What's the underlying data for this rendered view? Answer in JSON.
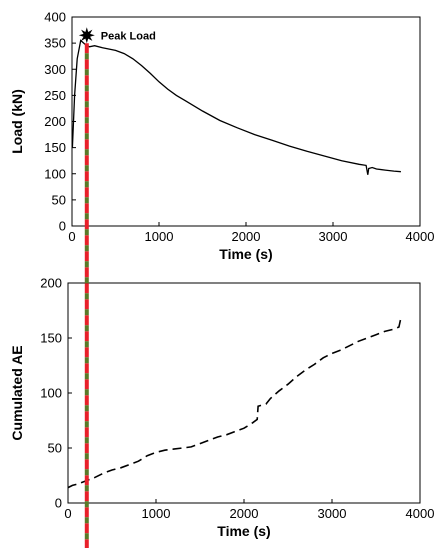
{
  "chart_data": [
    {
      "type": "line",
      "xlabel": "Time (s)",
      "ylabel": "Load (kN)",
      "xlim": [
        0,
        4000
      ],
      "ylim": [
        0,
        400
      ],
      "xticks": [
        0,
        1000,
        2000,
        3000,
        4000
      ],
      "yticks": [
        0,
        50,
        100,
        150,
        200,
        250,
        300,
        350,
        400
      ],
      "annotation": {
        "text": "Peak Load",
        "x": 170,
        "y": 365
      },
      "series": [
        {
          "color": "#000000",
          "x": [
            5,
            30,
            60,
            100,
            150,
            200,
            260,
            350,
            500,
            600,
            700,
            800,
            900,
            1000,
            1100,
            1200,
            1300,
            1500,
            1700,
            1900,
            2100,
            2300,
            2500,
            2700,
            2900,
            3100,
            3300,
            3380,
            3400,
            3410,
            3450,
            3500,
            3600,
            3700,
            3780
          ],
          "y": [
            150,
            250,
            320,
            355,
            348,
            343,
            345,
            341,
            336,
            330,
            320,
            307,
            292,
            276,
            262,
            250,
            240,
            220,
            202,
            188,
            175,
            164,
            153,
            143,
            134,
            125,
            118,
            116,
            98,
            110,
            112,
            109,
            107,
            105,
            104
          ]
        }
      ]
    },
    {
      "type": "line",
      "xlabel": "Time (s)",
      "ylabel": "Cumulated AE",
      "xlim": [
        0,
        4000
      ],
      "ylim": [
        0,
        200
      ],
      "xticks": [
        0,
        1000,
        2000,
        3000,
        4000
      ],
      "yticks": [
        0,
        50,
        100,
        150,
        200
      ],
      "series": [
        {
          "color": "#000000",
          "x": [
            0,
            50,
            100,
            200,
            300,
            400,
            500,
            600,
            700,
            800,
            900,
            1000,
            1100,
            1200,
            1300,
            1400,
            1500,
            1600,
            1700,
            1800,
            1900,
            2000,
            2100,
            2150,
            2160,
            2250,
            2300,
            2400,
            2500,
            2600,
            2700,
            2800,
            2900,
            3000,
            3100,
            3200,
            3300,
            3400,
            3500,
            3600,
            3700,
            3760,
            3780
          ],
          "y": [
            14,
            16,
            17,
            20,
            23,
            27,
            30,
            32,
            35,
            38,
            43,
            46,
            48,
            49,
            50,
            51,
            54,
            57,
            60,
            62,
            65,
            68,
            73,
            76,
            88,
            90,
            95,
            102,
            108,
            115,
            121,
            126,
            132,
            136,
            139,
            143,
            147,
            150,
            153,
            156,
            158,
            160,
            167
          ]
        }
      ]
    }
  ]
}
